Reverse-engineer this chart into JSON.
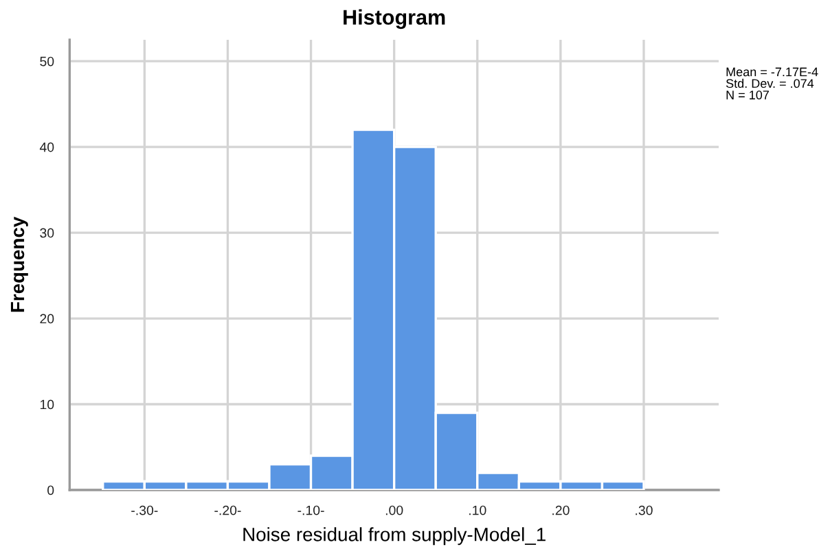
{
  "chart_data": {
    "type": "histogram",
    "title": "Histogram",
    "xlabel": "Noise residual from supply-Model_1",
    "ylabel": "Frequency",
    "bins": [
      -0.35,
      -0.3,
      -0.25,
      -0.2,
      -0.15,
      -0.1,
      -0.05,
      0.0,
      0.05,
      0.1,
      0.15,
      0.2,
      0.25,
      0.3
    ],
    "values": [
      1,
      1,
      1,
      1,
      3,
      4,
      42,
      40,
      9,
      2,
      1,
      1,
      1
    ],
    "color": "#5a96e3",
    "xlim": [
      -0.39,
      0.39
    ],
    "ylim": [
      0,
      52.5
    ],
    "xticks": [
      {
        "value": -0.3,
        "label": "-.30-"
      },
      {
        "value": -0.2,
        "label": "-.20-"
      },
      {
        "value": -0.1,
        "label": "-.10-"
      },
      {
        "value": 0.0,
        "label": ".00"
      },
      {
        "value": 0.1,
        "label": ".10"
      },
      {
        "value": 0.2,
        "label": ".20"
      },
      {
        "value": 0.3,
        "label": ".30"
      }
    ],
    "yticks": [
      0,
      10,
      20,
      30,
      40,
      50
    ],
    "grid": true,
    "annotations": [
      "Mean = -7.17E-4\nStd. Dev. = .074\nN = 107"
    ]
  }
}
